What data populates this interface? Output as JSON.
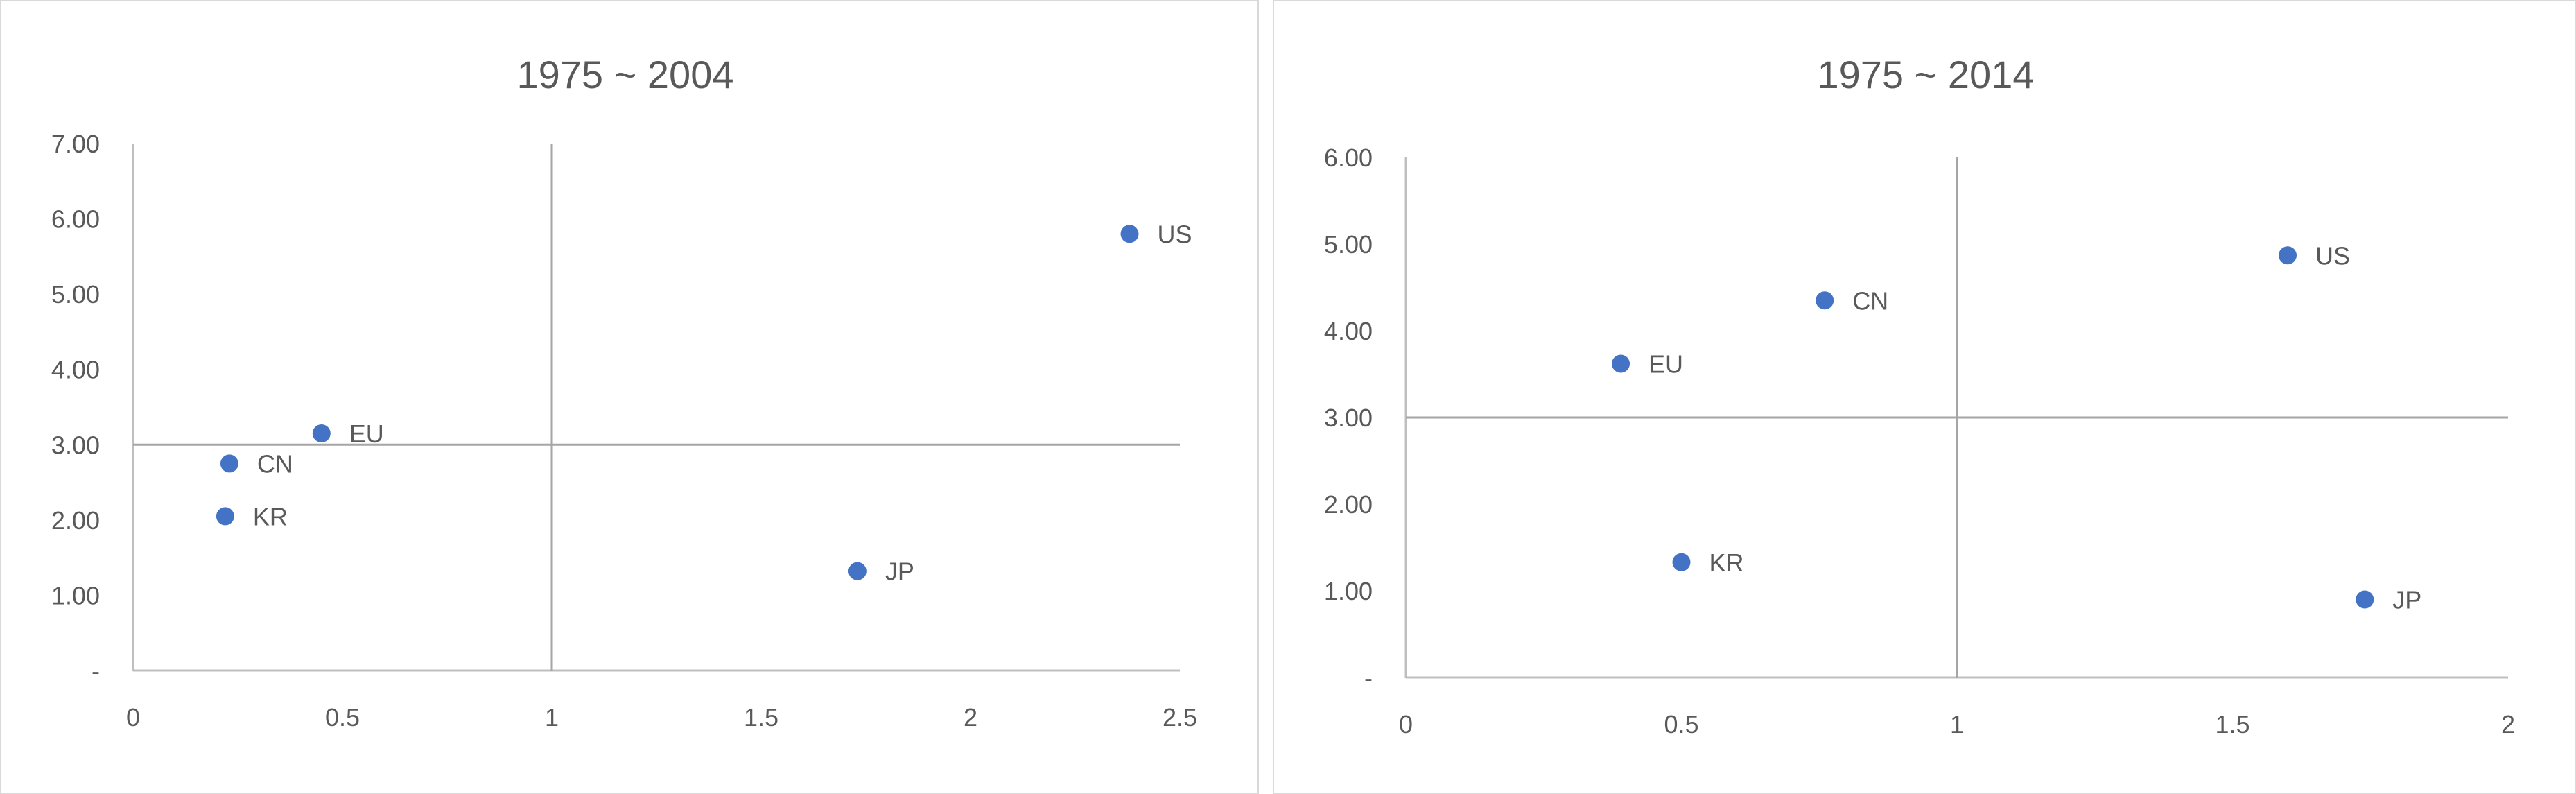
{
  "chart_data": [
    {
      "type": "scatter",
      "title": "1975 ~ 2004",
      "xlabel": "",
      "ylabel": "",
      "xlim": [
        0,
        2.5
      ],
      "ylim": [
        0,
        7
      ],
      "x_ticks": [
        0,
        0.5,
        1,
        1.5,
        2,
        2.5
      ],
      "x_tick_labels": [
        "0",
        "0.5",
        "1",
        "1.5",
        "2",
        "2.5"
      ],
      "y_ticks": [
        0,
        1,
        2,
        3,
        4,
        5,
        6,
        7
      ],
      "y_tick_labels": [
        "-",
        "1.00",
        "2.00",
        "3.00",
        "4.00",
        "5.00",
        "6.00",
        "7.00"
      ],
      "reference_lines": {
        "x": 1,
        "y": 3
      },
      "grid": false,
      "legend": "none",
      "color": "#4472c4",
      "points": [
        {
          "label": "US",
          "x": 2.38,
          "y": 5.8
        },
        {
          "label": "EU",
          "x": 0.45,
          "y": 3.15
        },
        {
          "label": "CN",
          "x": 0.23,
          "y": 2.75
        },
        {
          "label": "KR",
          "x": 0.22,
          "y": 2.05
        },
        {
          "label": "JP",
          "x": 1.73,
          "y": 1.32
        }
      ]
    },
    {
      "type": "scatter",
      "title": "1975 ~ 2014",
      "xlabel": "",
      "ylabel": "",
      "xlim": [
        0,
        2
      ],
      "ylim": [
        0,
        6
      ],
      "x_ticks": [
        0,
        0.5,
        1,
        1.5,
        2
      ],
      "x_tick_labels": [
        "0",
        "0.5",
        "1",
        "1.5",
        "2"
      ],
      "y_ticks": [
        0,
        1,
        2,
        3,
        4,
        5,
        6
      ],
      "y_tick_labels": [
        "-",
        "1.00",
        "2.00",
        "3.00",
        "4.00",
        "5.00",
        "6.00"
      ],
      "reference_lines": {
        "x": 1,
        "y": 3
      },
      "grid": false,
      "legend": "none",
      "color": "#4472c4",
      "points": [
        {
          "label": "US",
          "x": 1.6,
          "y": 4.87
        },
        {
          "label": "CN",
          "x": 0.76,
          "y": 4.35
        },
        {
          "label": "EU",
          "x": 0.39,
          "y": 3.62
        },
        {
          "label": "KR",
          "x": 0.5,
          "y": 1.33
        },
        {
          "label": "JP",
          "x": 1.74,
          "y": 0.9
        }
      ]
    }
  ]
}
